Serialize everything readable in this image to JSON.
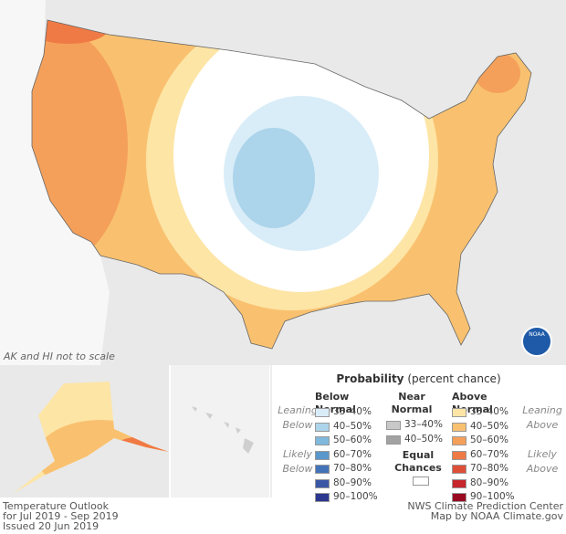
{
  "map": {
    "note": "AK and HI not to scale",
    "logo": "NOAA"
  },
  "legend": {
    "title": "Probability",
    "subtitle": "(percent chance)",
    "columns": [
      {
        "heading": "Below Normal",
        "items": [
          {
            "label": "33–40%",
            "color": "#d9edf8"
          },
          {
            "label": "40–50%",
            "color": "#acd4ea"
          },
          {
            "label": "50–60%",
            "color": "#80b9dc"
          },
          {
            "label": "60–70%",
            "color": "#5a97cb"
          },
          {
            "label": "70–80%",
            "color": "#4474b8"
          },
          {
            "label": "80–90%",
            "color": "#3a57a6"
          },
          {
            "label": "90–100%",
            "color": "#2c378f"
          }
        ]
      },
      {
        "heading": "Near Normal",
        "items": [
          {
            "label": "33–40%",
            "color": "#c8c8c8"
          },
          {
            "label": "40–50%",
            "color": "#a2a2a2"
          }
        ]
      },
      {
        "heading": "Above Normal",
        "items": [
          {
            "label": "33–40%",
            "color": "#fde5a6"
          },
          {
            "label": "40–50%",
            "color": "#f9c16f"
          },
          {
            "label": "50–60%",
            "color": "#f5a05a"
          },
          {
            "label": "60–70%",
            "color": "#f07a45"
          },
          {
            "label": "70–80%",
            "color": "#de4f38"
          },
          {
            "label": "80–90%",
            "color": "#c6262c"
          },
          {
            "label": "90–100%",
            "color": "#990a22"
          }
        ]
      }
    ],
    "leaning_below": "Leaning Below",
    "likely_below": "Likely Below",
    "leaning_above": "Leaning Above",
    "likely_above": "Likely Above",
    "equal_chances": "Equal Chances"
  },
  "footer": {
    "left": [
      "Temperature Outlook",
      "for Jul 2019 - Sep 2019",
      "Issued 20 Jun 2019"
    ],
    "right": [
      "NWS Climate Prediction Center",
      "Map by NOAA Climate.gov"
    ]
  }
}
